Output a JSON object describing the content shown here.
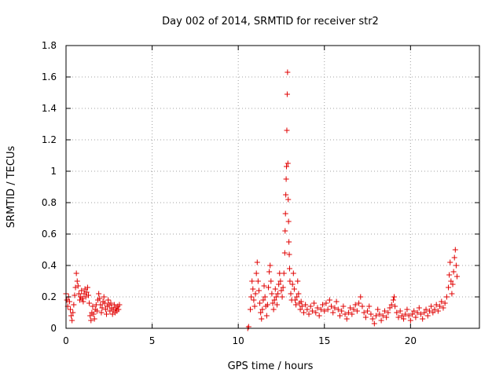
{
  "chart_data": {
    "type": "scatter",
    "title": "Day 002 of 2014, SRMTID for receiver str2",
    "xlabel": "GPS time / hours",
    "ylabel": "SRMTID / TECUs",
    "xlim": [
      0,
      24
    ],
    "ylim": [
      0,
      1.8
    ],
    "xticks": [
      0,
      5,
      10,
      15,
      20
    ],
    "xtick_labels": [
      "0",
      "5",
      "10",
      "15",
      "20"
    ],
    "yticks": [
      0,
      0.2,
      0.4,
      0.6,
      0.8,
      1,
      1.2,
      1.4,
      1.6,
      1.8
    ],
    "ytick_labels": [
      "0",
      "0.2",
      "0.4",
      "0.6",
      "0.8",
      "1",
      "1.2",
      "1.4",
      "1.6",
      "1.8"
    ],
    "grid": true,
    "marker": "+",
    "marker_color": "#e00000",
    "series": [
      {
        "name": "SRMTID",
        "points": [
          [
            0.0,
            0.22
          ],
          [
            0.05,
            0.18
          ],
          [
            0.1,
            0.14
          ],
          [
            0.15,
            0.2
          ],
          [
            0.2,
            0.17
          ],
          [
            0.25,
            0.12
          ],
          [
            0.3,
            0.08
          ],
          [
            0.35,
            0.05
          ],
          [
            0.4,
            0.1
          ],
          [
            0.45,
            0.15
          ],
          [
            0.5,
            0.21
          ],
          [
            0.55,
            0.26
          ],
          [
            0.6,
            0.35
          ],
          [
            0.65,
            0.3
          ],
          [
            0.7,
            0.27
          ],
          [
            0.75,
            0.22
          ],
          [
            0.8,
            0.18
          ],
          [
            0.85,
            0.2
          ],
          [
            0.9,
            0.24
          ],
          [
            0.95,
            0.19
          ],
          [
            1.0,
            0.17
          ],
          [
            1.05,
            0.22
          ],
          [
            1.1,
            0.25
          ],
          [
            1.15,
            0.2
          ],
          [
            1.2,
            0.23
          ],
          [
            1.25,
            0.26
          ],
          [
            1.3,
            0.21
          ],
          [
            1.35,
            0.16
          ],
          [
            1.4,
            0.08
          ],
          [
            1.45,
            0.05
          ],
          [
            1.5,
            0.1
          ],
          [
            1.55,
            0.14
          ],
          [
            1.6,
            0.09
          ],
          [
            1.65,
            0.06
          ],
          [
            1.7,
            0.12
          ],
          [
            1.75,
            0.15
          ],
          [
            1.8,
            0.11
          ],
          [
            1.85,
            0.18
          ],
          [
            1.9,
            0.22
          ],
          [
            1.95,
            0.19
          ],
          [
            2.0,
            0.15
          ],
          [
            2.05,
            0.1
          ],
          [
            2.1,
            0.13
          ],
          [
            2.15,
            0.17
          ],
          [
            2.2,
            0.2
          ],
          [
            2.25,
            0.16
          ],
          [
            2.3,
            0.12
          ],
          [
            2.35,
            0.09
          ],
          [
            2.4,
            0.14
          ],
          [
            2.45,
            0.18
          ],
          [
            2.5,
            0.15
          ],
          [
            2.55,
            0.11
          ],
          [
            2.6,
            0.16
          ],
          [
            2.65,
            0.13
          ],
          [
            2.7,
            0.09
          ],
          [
            2.75,
            0.12
          ],
          [
            2.8,
            0.15
          ],
          [
            2.85,
            0.1
          ],
          [
            2.9,
            0.13
          ],
          [
            2.95,
            0.11
          ],
          [
            3.0,
            0.14
          ],
          [
            3.05,
            0.12
          ],
          [
            3.1,
            0.15
          ],
          [
            10.55,
            0.0
          ],
          [
            10.6,
            0.01
          ],
          [
            10.7,
            0.12
          ],
          [
            10.75,
            0.2
          ],
          [
            10.8,
            0.3
          ],
          [
            10.85,
            0.25
          ],
          [
            10.9,
            0.18
          ],
          [
            10.95,
            0.14
          ],
          [
            11.0,
            0.22
          ],
          [
            11.05,
            0.35
          ],
          [
            11.1,
            0.42
          ],
          [
            11.15,
            0.3
          ],
          [
            11.2,
            0.24
          ],
          [
            11.25,
            0.16
          ],
          [
            11.3,
            0.1
          ],
          [
            11.35,
            0.06
          ],
          [
            11.4,
            0.12
          ],
          [
            11.45,
            0.18
          ],
          [
            11.5,
            0.27
          ],
          [
            11.55,
            0.2
          ],
          [
            11.6,
            0.14
          ],
          [
            11.65,
            0.08
          ],
          [
            11.7,
            0.15
          ],
          [
            11.75,
            0.26
          ],
          [
            11.8,
            0.36
          ],
          [
            11.85,
            0.4
          ],
          [
            11.9,
            0.3
          ],
          [
            11.95,
            0.22
          ],
          [
            12.0,
            0.16
          ],
          [
            12.05,
            0.12
          ],
          [
            12.1,
            0.18
          ],
          [
            12.15,
            0.25
          ],
          [
            12.2,
            0.2
          ],
          [
            12.25,
            0.15
          ],
          [
            12.3,
            0.22
          ],
          [
            12.35,
            0.28
          ],
          [
            12.4,
            0.35
          ],
          [
            12.45,
            0.3
          ],
          [
            12.5,
            0.24
          ],
          [
            12.55,
            0.2
          ],
          [
            12.6,
            0.26
          ],
          [
            12.65,
            0.35
          ],
          [
            12.7,
            0.48
          ],
          [
            12.72,
            0.62
          ],
          [
            12.74,
            0.73
          ],
          [
            12.76,
            0.85
          ],
          [
            12.78,
            0.95
          ],
          [
            12.8,
            1.03
          ],
          [
            12.82,
            1.26
          ],
          [
            12.84,
            1.49
          ],
          [
            12.86,
            1.63
          ],
          [
            12.88,
            1.05
          ],
          [
            12.9,
            0.82
          ],
          [
            12.92,
            0.68
          ],
          [
            12.94,
            0.55
          ],
          [
            12.96,
            0.47
          ],
          [
            12.98,
            0.38
          ],
          [
            13.0,
            0.3
          ],
          [
            13.05,
            0.22
          ],
          [
            13.1,
            0.18
          ],
          [
            13.15,
            0.28
          ],
          [
            13.2,
            0.35
          ],
          [
            13.25,
            0.25
          ],
          [
            13.3,
            0.18
          ],
          [
            13.35,
            0.15
          ],
          [
            13.4,
            0.2
          ],
          [
            13.45,
            0.3
          ],
          [
            13.5,
            0.22
          ],
          [
            13.55,
            0.16
          ],
          [
            13.6,
            0.12
          ],
          [
            13.65,
            0.17
          ],
          [
            13.7,
            0.14
          ],
          [
            13.8,
            0.1
          ],
          [
            13.9,
            0.15
          ],
          [
            14.0,
            0.12
          ],
          [
            14.1,
            0.09
          ],
          [
            14.2,
            0.14
          ],
          [
            14.3,
            0.11
          ],
          [
            14.4,
            0.16
          ],
          [
            14.5,
            0.1
          ],
          [
            14.6,
            0.13
          ],
          [
            14.7,
            0.08
          ],
          [
            14.8,
            0.12
          ],
          [
            14.9,
            0.15
          ],
          [
            15.0,
            0.11
          ],
          [
            15.1,
            0.16
          ],
          [
            15.2,
            0.12
          ],
          [
            15.3,
            0.18
          ],
          [
            15.4,
            0.14
          ],
          [
            15.5,
            0.1
          ],
          [
            15.6,
            0.13
          ],
          [
            15.7,
            0.17
          ],
          [
            15.8,
            0.12
          ],
          [
            15.9,
            0.08
          ],
          [
            16.0,
            0.11
          ],
          [
            16.1,
            0.14
          ],
          [
            16.2,
            0.09
          ],
          [
            16.3,
            0.06
          ],
          [
            16.4,
            0.1
          ],
          [
            16.5,
            0.13
          ],
          [
            16.6,
            0.09
          ],
          [
            16.7,
            0.12
          ],
          [
            16.8,
            0.15
          ],
          [
            16.9,
            0.11
          ],
          [
            17.0,
            0.16
          ],
          [
            17.1,
            0.2
          ],
          [
            17.2,
            0.14
          ],
          [
            17.3,
            0.1
          ],
          [
            17.4,
            0.07
          ],
          [
            17.5,
            0.11
          ],
          [
            17.6,
            0.14
          ],
          [
            17.7,
            0.09
          ],
          [
            17.8,
            0.06
          ],
          [
            17.9,
            0.03
          ],
          [
            18.0,
            0.08
          ],
          [
            18.1,
            0.12
          ],
          [
            18.2,
            0.09
          ],
          [
            18.3,
            0.05
          ],
          [
            18.4,
            0.08
          ],
          [
            18.5,
            0.11
          ],
          [
            18.6,
            0.07
          ],
          [
            18.7,
            0.1
          ],
          [
            18.8,
            0.13
          ],
          [
            18.9,
            0.15
          ],
          [
            19.0,
            0.18
          ],
          [
            19.05,
            0.2
          ],
          [
            19.1,
            0.14
          ],
          [
            19.2,
            0.1
          ],
          [
            19.3,
            0.07
          ],
          [
            19.4,
            0.11
          ],
          [
            19.5,
            0.08
          ],
          [
            19.6,
            0.06
          ],
          [
            19.7,
            0.09
          ],
          [
            19.8,
            0.12
          ],
          [
            19.9,
            0.08
          ],
          [
            20.0,
            0.05
          ],
          [
            20.1,
            0.09
          ],
          [
            20.2,
            0.11
          ],
          [
            20.3,
            0.07
          ],
          [
            20.4,
            0.1
          ],
          [
            20.5,
            0.13
          ],
          [
            20.6,
            0.09
          ],
          [
            20.7,
            0.06
          ],
          [
            20.8,
            0.1
          ],
          [
            20.9,
            0.12
          ],
          [
            21.0,
            0.08
          ],
          [
            21.1,
            0.11
          ],
          [
            21.2,
            0.14
          ],
          [
            21.3,
            0.1
          ],
          [
            21.4,
            0.12
          ],
          [
            21.5,
            0.15
          ],
          [
            21.6,
            0.11
          ],
          [
            21.7,
            0.14
          ],
          [
            21.8,
            0.17
          ],
          [
            21.9,
            0.13
          ],
          [
            22.0,
            0.16
          ],
          [
            22.1,
            0.2
          ],
          [
            22.2,
            0.26
          ],
          [
            22.25,
            0.34
          ],
          [
            22.3,
            0.42
          ],
          [
            22.35,
            0.3
          ],
          [
            22.4,
            0.22
          ],
          [
            22.45,
            0.28
          ],
          [
            22.5,
            0.36
          ],
          [
            22.55,
            0.45
          ],
          [
            22.6,
            0.5
          ],
          [
            22.65,
            0.4
          ],
          [
            22.7,
            0.33
          ]
        ]
      }
    ]
  }
}
